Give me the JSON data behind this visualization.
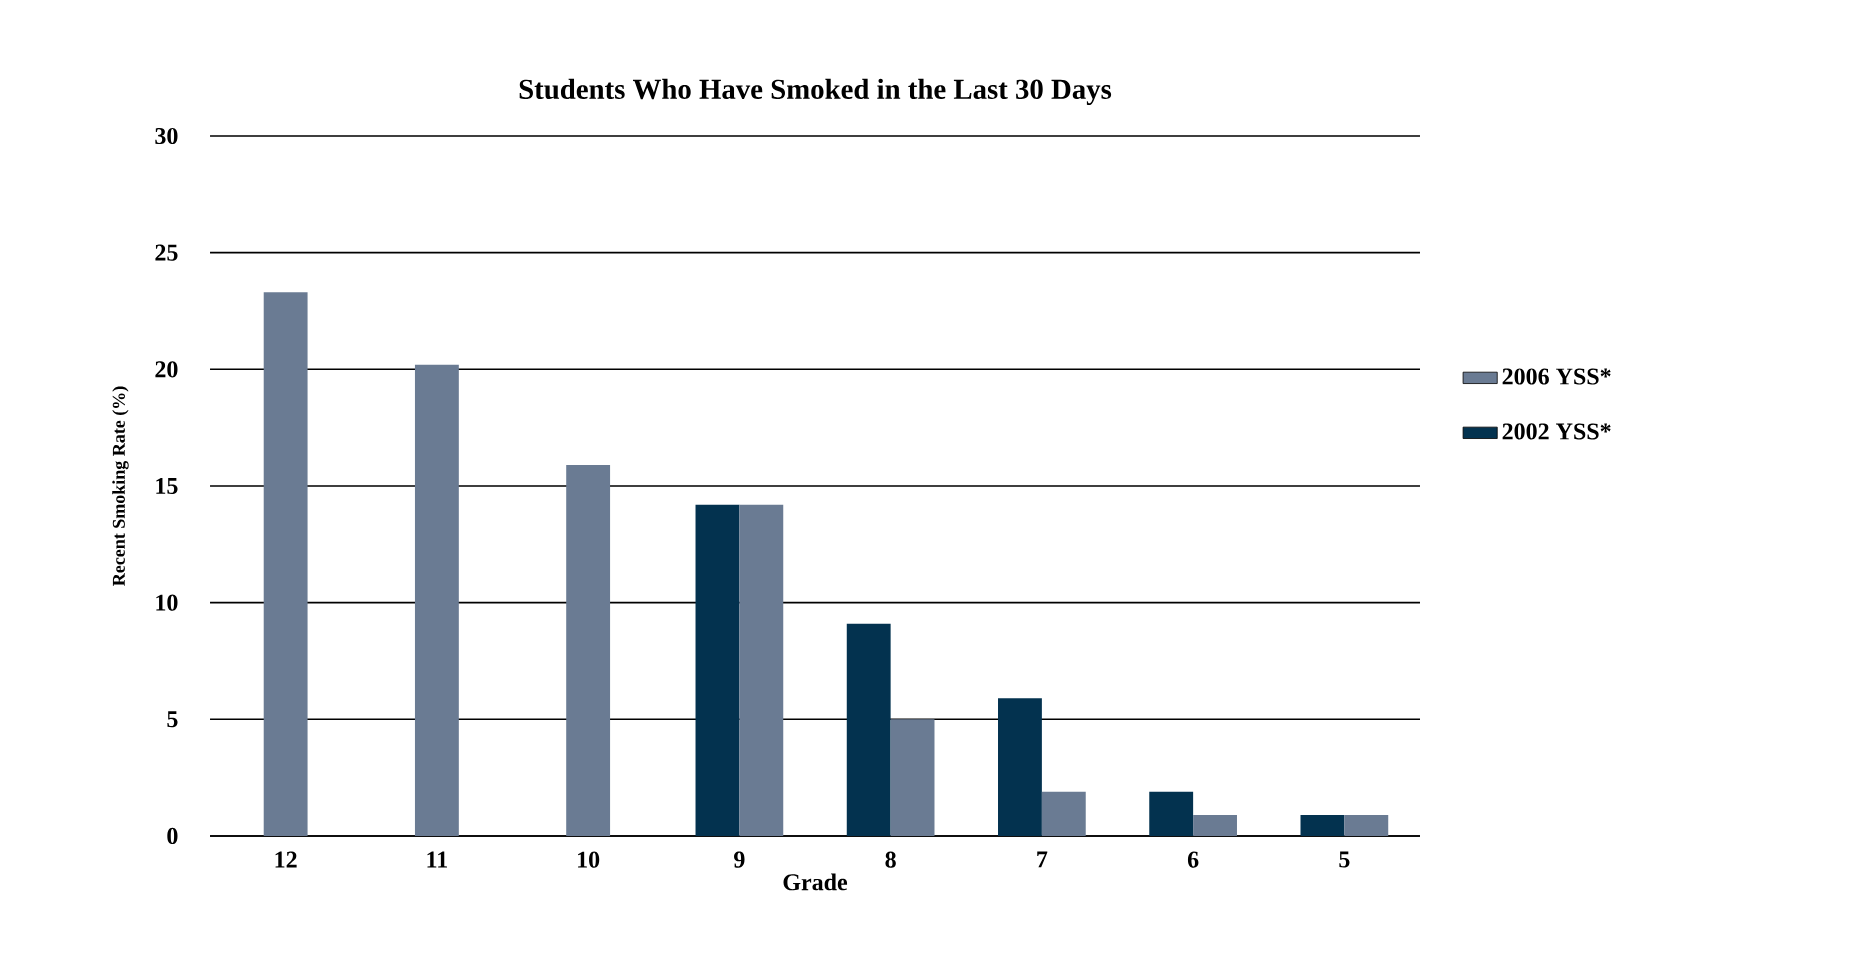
{
  "chart_data": {
    "type": "bar",
    "title": "Students Who Have Smoked in the Last 30 Days",
    "xlabel": "Grade",
    "ylabel": "Recent Smoking Rate (%)",
    "categories": [
      "12",
      "11",
      "10",
      "9",
      "8",
      "7",
      "6",
      "5"
    ],
    "series": [
      {
        "name": "2002 YSS*",
        "color": "#03324f",
        "values": [
          null,
          null,
          null,
          14.2,
          9.1,
          5.9,
          1.9,
          0.9
        ]
      },
      {
        "name": "2006 YSS*",
        "color": "#6a7b93",
        "values": [
          23.3,
          20.2,
          15.9,
          14.2,
          5.0,
          1.9,
          0.9,
          0.9
        ]
      }
    ],
    "ylim": [
      0,
      30
    ],
    "yticks": [
      0,
      5,
      10,
      15,
      20,
      25,
      30
    ],
    "grid": "y",
    "legend": "right"
  }
}
